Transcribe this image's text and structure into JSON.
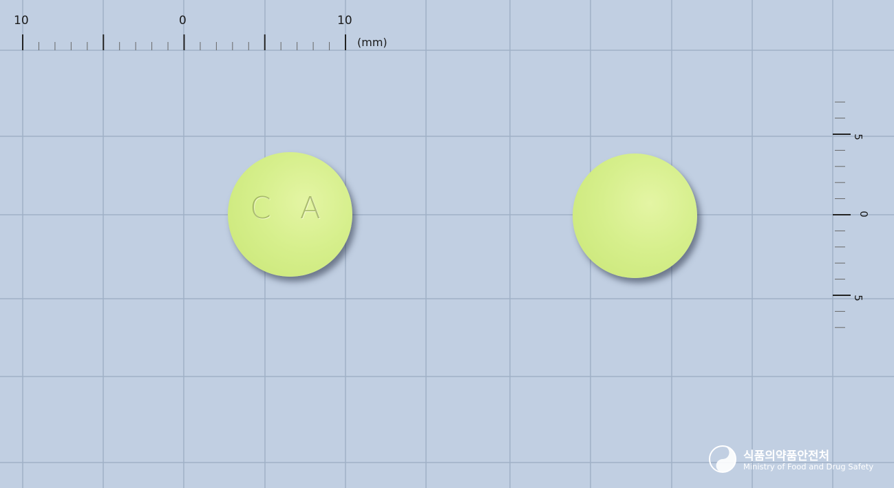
{
  "ruler": {
    "top_labels": [
      "10",
      "0",
      "10"
    ],
    "unit": "(mm)",
    "side_labels": [
      "5",
      "0",
      "5"
    ]
  },
  "pill": {
    "imprint": "C A",
    "color": "#d6ef8c"
  },
  "logo": {
    "korean": "식품의약품안전처",
    "english": "Ministry of Food and Drug Safety",
    "icon": "mfds-emblem-icon"
  },
  "colors": {
    "background": "#c1cfe2",
    "grid": "#9fb0c6"
  }
}
